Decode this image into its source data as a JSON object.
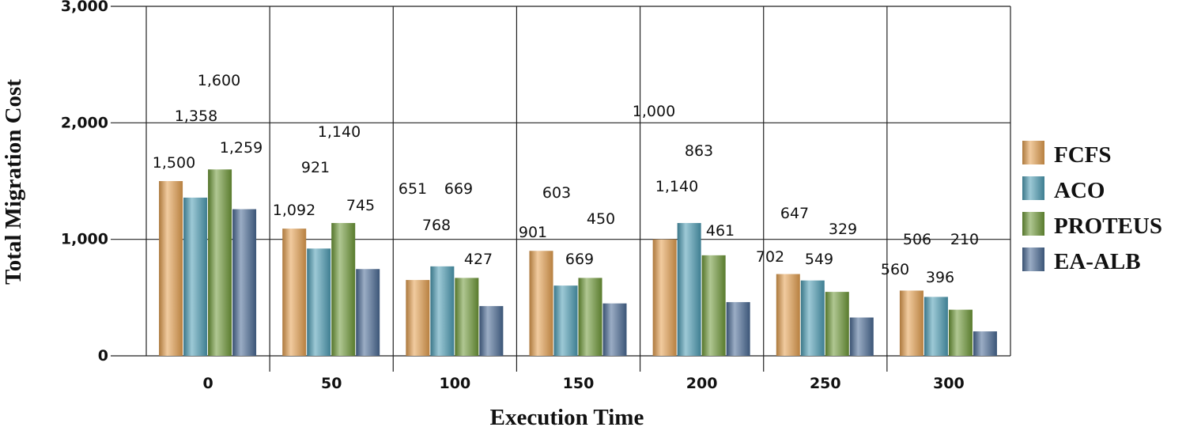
{
  "chart_data": {
    "type": "bar",
    "xlabel": "Execution Time",
    "ylabel": "Total Migration Cost",
    "categories": [
      "0",
      "50",
      "100",
      "150",
      "200",
      "250",
      "300"
    ],
    "ylim": [
      0,
      3000
    ],
    "yticks": [
      0,
      1000,
      2000,
      3000
    ],
    "ytick_labels": [
      "0",
      "1,000",
      "2,000",
      "3,000"
    ],
    "grid": true,
    "legend_position": "right",
    "series": [
      {
        "name": "FCFS",
        "color": "#e5a050",
        "values": [
          1500,
          1092,
          651,
          901,
          1000,
          702,
          560
        ],
        "labels": [
          "1,500",
          "1,092",
          "651",
          "901",
          "1,000",
          "702",
          "560"
        ]
      },
      {
        "name": "ACO",
        "color": "#4d9db5",
        "values": [
          1358,
          921,
          768,
          603,
          1140,
          647,
          506
        ],
        "labels": [
          "1,358",
          "921",
          "768",
          "603",
          "1,140",
          "647",
          "506"
        ]
      },
      {
        "name": "PROTEUS",
        "color": "#6f9a38",
        "values": [
          1600,
          1140,
          669,
          669,
          863,
          549,
          396
        ],
        "labels": [
          "1,600",
          "1,140",
          "669",
          "669",
          "863",
          "549",
          "396"
        ]
      },
      {
        "name": "EA-ALB",
        "color": "#4a6a95",
        "values": [
          1259,
          745,
          427,
          450,
          461,
          329,
          210
        ],
        "labels": [
          "1,259",
          "745",
          "427",
          "450",
          "461",
          "329",
          "210"
        ]
      }
    ]
  }
}
